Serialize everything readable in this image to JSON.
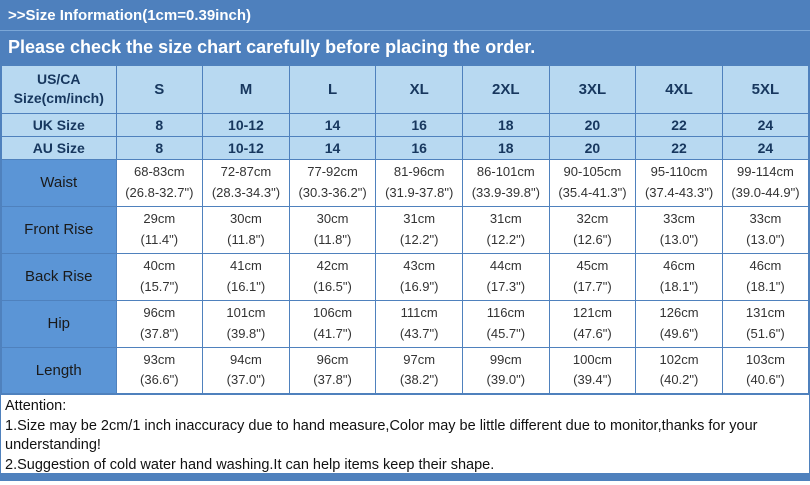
{
  "header": {
    "title": ">>Size Information(1cm=0.39inch)",
    "subtitle": "Please check the size chart carefully before placing the order."
  },
  "table": {
    "corner_line1": "US/CA",
    "corner_line2": "Size(cm/inch)",
    "columns": [
      "S",
      "M",
      "L",
      "XL",
      "2XL",
      "3XL",
      "4XL",
      "5XL"
    ],
    "size_rows": [
      {
        "label": "UK Size",
        "values": [
          "8",
          "10-12",
          "14",
          "16",
          "18",
          "20",
          "22",
          "24"
        ]
      },
      {
        "label": "AU Size",
        "values": [
          "8",
          "10-12",
          "14",
          "16",
          "18",
          "20",
          "22",
          "24"
        ]
      }
    ],
    "measure_rows": [
      {
        "label": "Waist",
        "cm": [
          "68-83cm",
          "72-87cm",
          "77-92cm",
          "81-96cm",
          "86-101cm",
          "90-105cm",
          "95-110cm",
          "99-114cm"
        ],
        "inch": [
          "(26.8-32.7\")",
          "(28.3-34.3\")",
          "(30.3-36.2\")",
          "(31.9-37.8\")",
          "(33.9-39.8\")",
          "(35.4-41.3\")",
          "(37.4-43.3\")",
          "(39.0-44.9\")"
        ]
      },
      {
        "label": "Front Rise",
        "cm": [
          "29cm",
          "30cm",
          "30cm",
          "31cm",
          "31cm",
          "32cm",
          "33cm",
          "33cm"
        ],
        "inch": [
          "(11.4\")",
          "(11.8\")",
          "(11.8\")",
          "(12.2\")",
          "(12.2\")",
          "(12.6\")",
          "(13.0\")",
          "(13.0\")"
        ]
      },
      {
        "label": "Back Rise",
        "cm": [
          "40cm",
          "41cm",
          "42cm",
          "43cm",
          "44cm",
          "45cm",
          "46cm",
          "46cm"
        ],
        "inch": [
          "(15.7\")",
          "(16.1\")",
          "(16.5\")",
          "(16.9\")",
          "(17.3\")",
          "(17.7\")",
          "(18.1\")",
          "(18.1\")"
        ]
      },
      {
        "label": "Hip",
        "cm": [
          "96cm",
          "101cm",
          "106cm",
          "111cm",
          "116cm",
          "121cm",
          "126cm",
          "131cm"
        ],
        "inch": [
          "(37.8\")",
          "(39.8\")",
          "(41.7\")",
          "(43.7\")",
          "(45.7\")",
          "(47.6\")",
          "(49.6\")",
          "(51.6\")"
        ]
      },
      {
        "label": "Length",
        "cm": [
          "93cm",
          "94cm",
          "96cm",
          "97cm",
          "99cm",
          "100cm",
          "102cm",
          "103cm"
        ],
        "inch": [
          "(36.6\")",
          "(37.0\")",
          "(37.8\")",
          "(38.2\")",
          "(39.0\")",
          "(39.4\")",
          "(40.2\")",
          "(40.6\")"
        ]
      }
    ]
  },
  "attention": {
    "title": "Attention:",
    "lines": [
      "1.Size may be 2cm/1 inch inaccuracy due to hand measure,Color may be little different due to monitor,thanks for your understanding!",
      "2.Suggestion of cold water hand washing.It can help items keep their shape."
    ]
  },
  "colors": {
    "band_blue": "#4e80bd",
    "light_blue": "#b8d9f1",
    "label_blue": "#5b95d6",
    "border_blue": "#4f81bd"
  }
}
